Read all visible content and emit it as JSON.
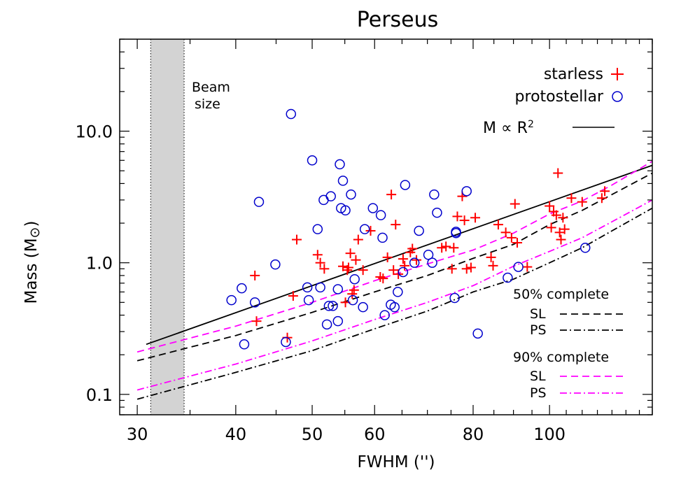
{
  "chart_data": {
    "type": "scatter",
    "title": "Perseus",
    "xlabel": "FWHM ('')",
    "ylabel": "Mass (M",
    "ylabel_symbol": "⊙",
    "ylabel_close": ")",
    "xscale": "log",
    "yscale": "log",
    "xlim": [
      28.5,
      135
    ],
    "ylim": [
      0.07,
      50
    ],
    "x_ticks": [
      30,
      40,
      50,
      60,
      80,
      100
    ],
    "x_tick_labels": [
      "30",
      "40",
      "50",
      "60",
      "80",
      "100"
    ],
    "y_ticks": [
      0.1,
      1.0,
      10.0
    ],
    "y_tick_labels": [
      "0.1",
      "1.0",
      "10.0"
    ],
    "beam_label_line1": "Beam",
    "beam_label_line2": "size",
    "beam_range": [
      31.2,
      34.4
    ],
    "legend_starless": "starless",
    "legend_protostellar": "protostellar",
    "legend_relation": "M ∝ R",
    "legend_relation_sup": "2",
    "complete50_label": "50% complete",
    "complete90_label": "90% complete",
    "sl_label": "SL",
    "ps_label": "PS",
    "colors": {
      "starless": "#ff0000",
      "protostellar": "#0000cc",
      "completeness_50": "#000000",
      "completeness_90": "#ff00ff",
      "beam": "#d3d3d3"
    },
    "series": [
      {
        "name": "starless",
        "marker": "plus",
        "points": [
          [
            42.3,
            0.8
          ],
          [
            42.5,
            0.36
          ],
          [
            46.5,
            0.27
          ],
          [
            47.3,
            0.56
          ],
          [
            47.8,
            1.5
          ],
          [
            50.8,
            1.15
          ],
          [
            51.2,
            1.0
          ],
          [
            51.8,
            0.9
          ],
          [
            54.7,
            0.94
          ],
          [
            55.1,
            0.5
          ],
          [
            55.4,
            0.88
          ],
          [
            55.6,
            0.92
          ],
          [
            55.9,
            1.18
          ],
          [
            56.2,
            0.58
          ],
          [
            56.5,
            0.62
          ],
          [
            56.8,
            1.05
          ],
          [
            57.2,
            1.5
          ],
          [
            58.0,
            0.88
          ],
          [
            59.3,
            1.75
          ],
          [
            61.0,
            0.78
          ],
          [
            61.5,
            0.76
          ],
          [
            62.3,
            1.1
          ],
          [
            63.0,
            3.3
          ],
          [
            63.4,
            0.88
          ],
          [
            63.8,
            1.95
          ],
          [
            64.3,
            0.82
          ],
          [
            65.2,
            1.07
          ],
          [
            65.5,
            0.95
          ],
          [
            66.6,
            1.2
          ],
          [
            67.0,
            1.28
          ],
          [
            67.8,
            1.05
          ],
          [
            73.0,
            1.3
          ],
          [
            73.9,
            1.33
          ],
          [
            75.2,
            0.9
          ],
          [
            75.6,
            1.3
          ],
          [
            76.4,
            2.25
          ],
          [
            77.5,
            3.2
          ],
          [
            78.0,
            2.1
          ],
          [
            78.5,
            0.9
          ],
          [
            79.5,
            0.92
          ],
          [
            80.5,
            2.2
          ],
          [
            84.3,
            1.1
          ],
          [
            84.8,
            0.95
          ],
          [
            86.1,
            1.95
          ],
          [
            88.0,
            1.7
          ],
          [
            89.5,
            1.55
          ],
          [
            90.4,
            2.8
          ],
          [
            91.0,
            1.42
          ],
          [
            93.7,
            0.93
          ],
          [
            100.0,
            2.7
          ],
          [
            100.5,
            1.85
          ],
          [
            101.2,
            2.45
          ],
          [
            102.0,
            2.3
          ],
          [
            102.5,
            4.8
          ],
          [
            103.0,
            1.7
          ],
          [
            103.4,
            1.5
          ],
          [
            104.0,
            2.2
          ],
          [
            104.5,
            1.8
          ],
          [
            106.6,
            3.1
          ],
          [
            110.0,
            2.9
          ],
          [
            116.5,
            3.1
          ],
          [
            117.5,
            3.5
          ]
        ]
      },
      {
        "name": "protostellar",
        "marker": "circle",
        "points": [
          [
            39.5,
            0.52
          ],
          [
            40.7,
            0.64
          ],
          [
            41.0,
            0.24
          ],
          [
            42.3,
            0.5
          ],
          [
            42.8,
            2.9
          ],
          [
            44.9,
            0.97
          ],
          [
            46.3,
            0.25
          ],
          [
            47.0,
            13.5
          ],
          [
            49.3,
            0.65
          ],
          [
            49.5,
            0.52
          ],
          [
            50.0,
            6.0
          ],
          [
            50.8,
            1.8
          ],
          [
            51.2,
            0.65
          ],
          [
            51.7,
            3.0
          ],
          [
            52.2,
            0.34
          ],
          [
            52.5,
            0.47
          ],
          [
            52.8,
            3.2
          ],
          [
            53.1,
            0.47
          ],
          [
            53.9,
            0.36
          ],
          [
            53.9,
            0.63
          ],
          [
            54.2,
            5.6
          ],
          [
            54.4,
            2.6
          ],
          [
            54.7,
            4.2
          ],
          [
            55.1,
            2.5
          ],
          [
            56.0,
            3.3
          ],
          [
            56.3,
            0.52
          ],
          [
            56.6,
            0.75
          ],
          [
            58.0,
            0.46
          ],
          [
            58.3,
            1.8
          ],
          [
            59.7,
            2.6
          ],
          [
            61.1,
            2.3
          ],
          [
            61.4,
            1.55
          ],
          [
            61.8,
            0.4
          ],
          [
            62.9,
            0.48
          ],
          [
            63.6,
            0.46
          ],
          [
            64.2,
            0.6
          ],
          [
            65.2,
            0.85
          ],
          [
            65.6,
            3.9
          ],
          [
            67.4,
            1.0
          ],
          [
            68.3,
            1.75
          ],
          [
            70.2,
            1.15
          ],
          [
            71.0,
            1.0
          ],
          [
            71.4,
            3.3
          ],
          [
            72.0,
            2.4
          ],
          [
            75.8,
            0.54
          ],
          [
            76.1,
            1.72
          ],
          [
            76.1,
            1.68
          ],
          [
            78.5,
            3.5
          ],
          [
            81.1,
            0.29
          ],
          [
            88.5,
            0.77
          ],
          [
            91.3,
            0.93
          ],
          [
            111.0,
            1.3
          ]
        ]
      }
    ],
    "lines": [
      {
        "name": "M ∝ R²",
        "color": "#000000",
        "dash": "solid",
        "x": [
          30.8,
          135
        ],
        "y": [
          0.24,
          5.5
        ]
      },
      {
        "name": "50% complete SL",
        "color": "#000000",
        "dash": "dashed",
        "x": [
          30,
          40,
          50,
          60,
          70,
          80,
          90,
          100,
          110,
          120,
          135
        ],
        "y": [
          0.18,
          0.28,
          0.42,
          0.6,
          0.8,
          1.08,
          1.38,
          1.95,
          2.5,
          3.3,
          4.8
        ]
      },
      {
        "name": "50% complete PS",
        "color": "#000000",
        "dash": "dashdot",
        "x": [
          30,
          40,
          50,
          60,
          70,
          80,
          90,
          100,
          110,
          120,
          135
        ],
        "y": [
          0.092,
          0.147,
          0.215,
          0.315,
          0.43,
          0.6,
          0.75,
          1.0,
          1.3,
          1.75,
          2.6
        ]
      },
      {
        "name": "90% complete SL",
        "color": "#ff00ff",
        "dash": "dashed",
        "x": [
          30,
          40,
          50,
          60,
          70,
          80,
          90,
          100,
          110,
          120,
          135
        ],
        "y": [
          0.21,
          0.33,
          0.5,
          0.73,
          0.98,
          1.25,
          1.68,
          2.35,
          2.95,
          3.9,
          5.9
        ]
      },
      {
        "name": "90% complete PS",
        "color": "#ff00ff",
        "dash": "dashdot",
        "x": [
          30,
          40,
          50,
          60,
          70,
          80,
          90,
          100,
          110,
          120,
          135
        ],
        "y": [
          0.108,
          0.17,
          0.255,
          0.37,
          0.5,
          0.67,
          0.94,
          1.22,
          1.55,
          2.05,
          3.0
        ]
      }
    ]
  }
}
